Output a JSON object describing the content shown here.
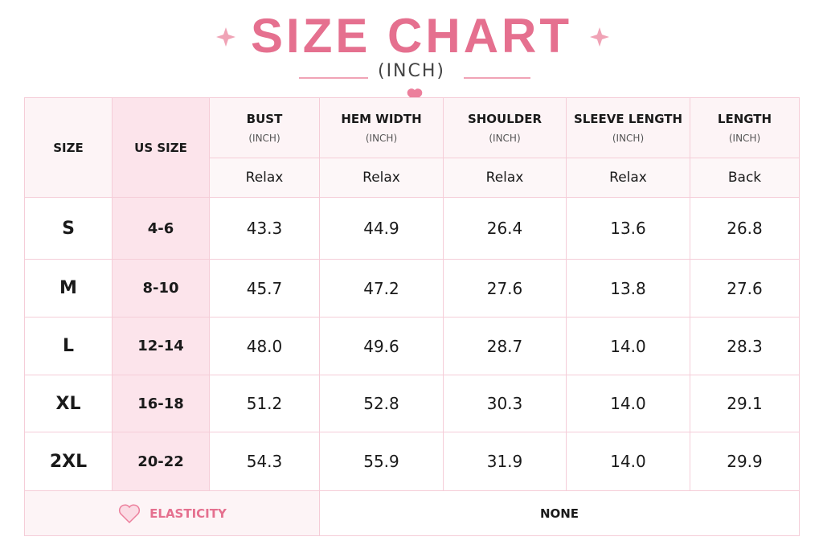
{
  "header": {
    "title": "SIZE CHART",
    "subtitle": "(INCH)"
  },
  "table": {
    "columns": [
      {
        "label": "SIZE"
      },
      {
        "label": "US SIZE"
      },
      {
        "label": "BUST",
        "unit": "(INCH)",
        "fit": "Relax"
      },
      {
        "label": "HEM WIDTH",
        "unit": "(INCH)",
        "fit": "Relax"
      },
      {
        "label": "SHOULDER",
        "unit": "(INCH)",
        "fit": "Relax"
      },
      {
        "label": "SLEEVE LENGTH",
        "unit": "(INCH)",
        "fit": "Relax"
      },
      {
        "label": "LENGTH",
        "unit": "(INCH)",
        "fit": "Back"
      }
    ],
    "rows": [
      [
        "S",
        "4-6",
        "43.3",
        "44.9",
        "26.4",
        "13.6",
        "26.8"
      ],
      [
        "M",
        "8-10",
        "45.7",
        "47.2",
        "27.6",
        "13.8",
        "27.6"
      ],
      [
        "L",
        "12-14",
        "48.0",
        "49.6",
        "28.7",
        "14.0",
        "28.3"
      ],
      [
        "XL",
        "16-18",
        "51.2",
        "52.8",
        "30.3",
        "14.0",
        "29.1"
      ],
      [
        "2XL",
        "20-22",
        "54.3",
        "55.9",
        "31.9",
        "14.0",
        "29.9"
      ]
    ],
    "footer": {
      "label": "ELASTICITY",
      "value": "NONE"
    }
  }
}
